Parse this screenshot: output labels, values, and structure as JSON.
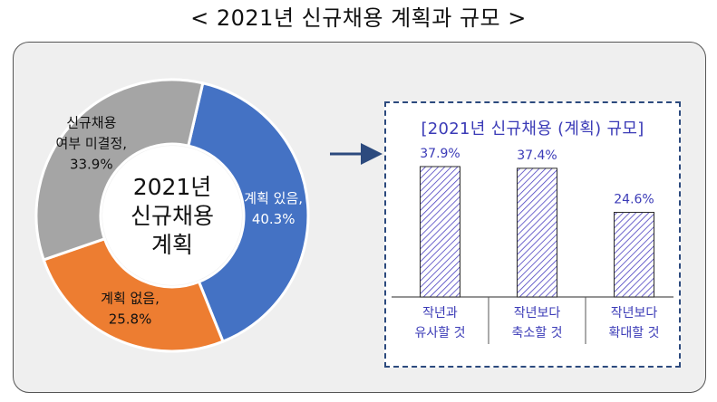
{
  "page_title": "< 2021년 신규채용 계획과 규모 >",
  "colors": {
    "plan_yes": "#4472c4",
    "plan_no": "#ed7d31",
    "undecided": "#a5a5a5",
    "bar_hatch": "#4a3fc0",
    "label_accent": "#3b3bb7",
    "box_border": "#2c4a7e"
  },
  "chart_data": [
    {
      "type": "pie",
      "subtype": "donut",
      "center_label": [
        "2021년",
        "신규채용",
        "계획"
      ],
      "slices": [
        {
          "label_lines": [
            "계획 있음,",
            "40.3%"
          ],
          "value": 40.3,
          "color": "#4472c4"
        },
        {
          "label_lines": [
            "계획 없음,",
            "25.8%"
          ],
          "value": 25.8,
          "color": "#ed7d31"
        },
        {
          "label_lines": [
            "신규채용",
            "여부 미결정,",
            "33.9%"
          ],
          "value": 33.9,
          "color": "#a5a5a5"
        }
      ]
    },
    {
      "type": "bar",
      "title": "[2021년 신규채용 (계획) 규모]",
      "categories": [
        [
          "작년과",
          "유사할 것"
        ],
        [
          "작년보다",
          "축소할 것"
        ],
        [
          "작년보다",
          "확대할 것"
        ]
      ],
      "values": [
        37.9,
        37.4,
        24.6
      ],
      "value_labels": [
        "37.9%",
        "37.4%",
        "24.6%"
      ],
      "ylim": [
        0,
        40
      ],
      "grid": false,
      "legend": "none"
    }
  ]
}
